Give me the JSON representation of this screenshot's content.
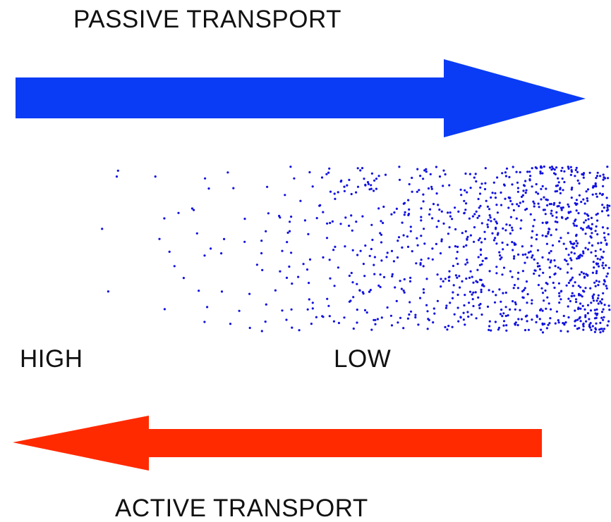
{
  "passive": {
    "title": "PASSIVE TRANSPORT",
    "arrow_direction": "right",
    "color": "#0a3cf5"
  },
  "active": {
    "title": "ACTIVE TRANSPORT",
    "arrow_direction": "left",
    "color": "#ff2a00"
  },
  "gradient": {
    "high_label": "HIGH",
    "low_label": "LOW",
    "particle_color": "#1212e0"
  }
}
